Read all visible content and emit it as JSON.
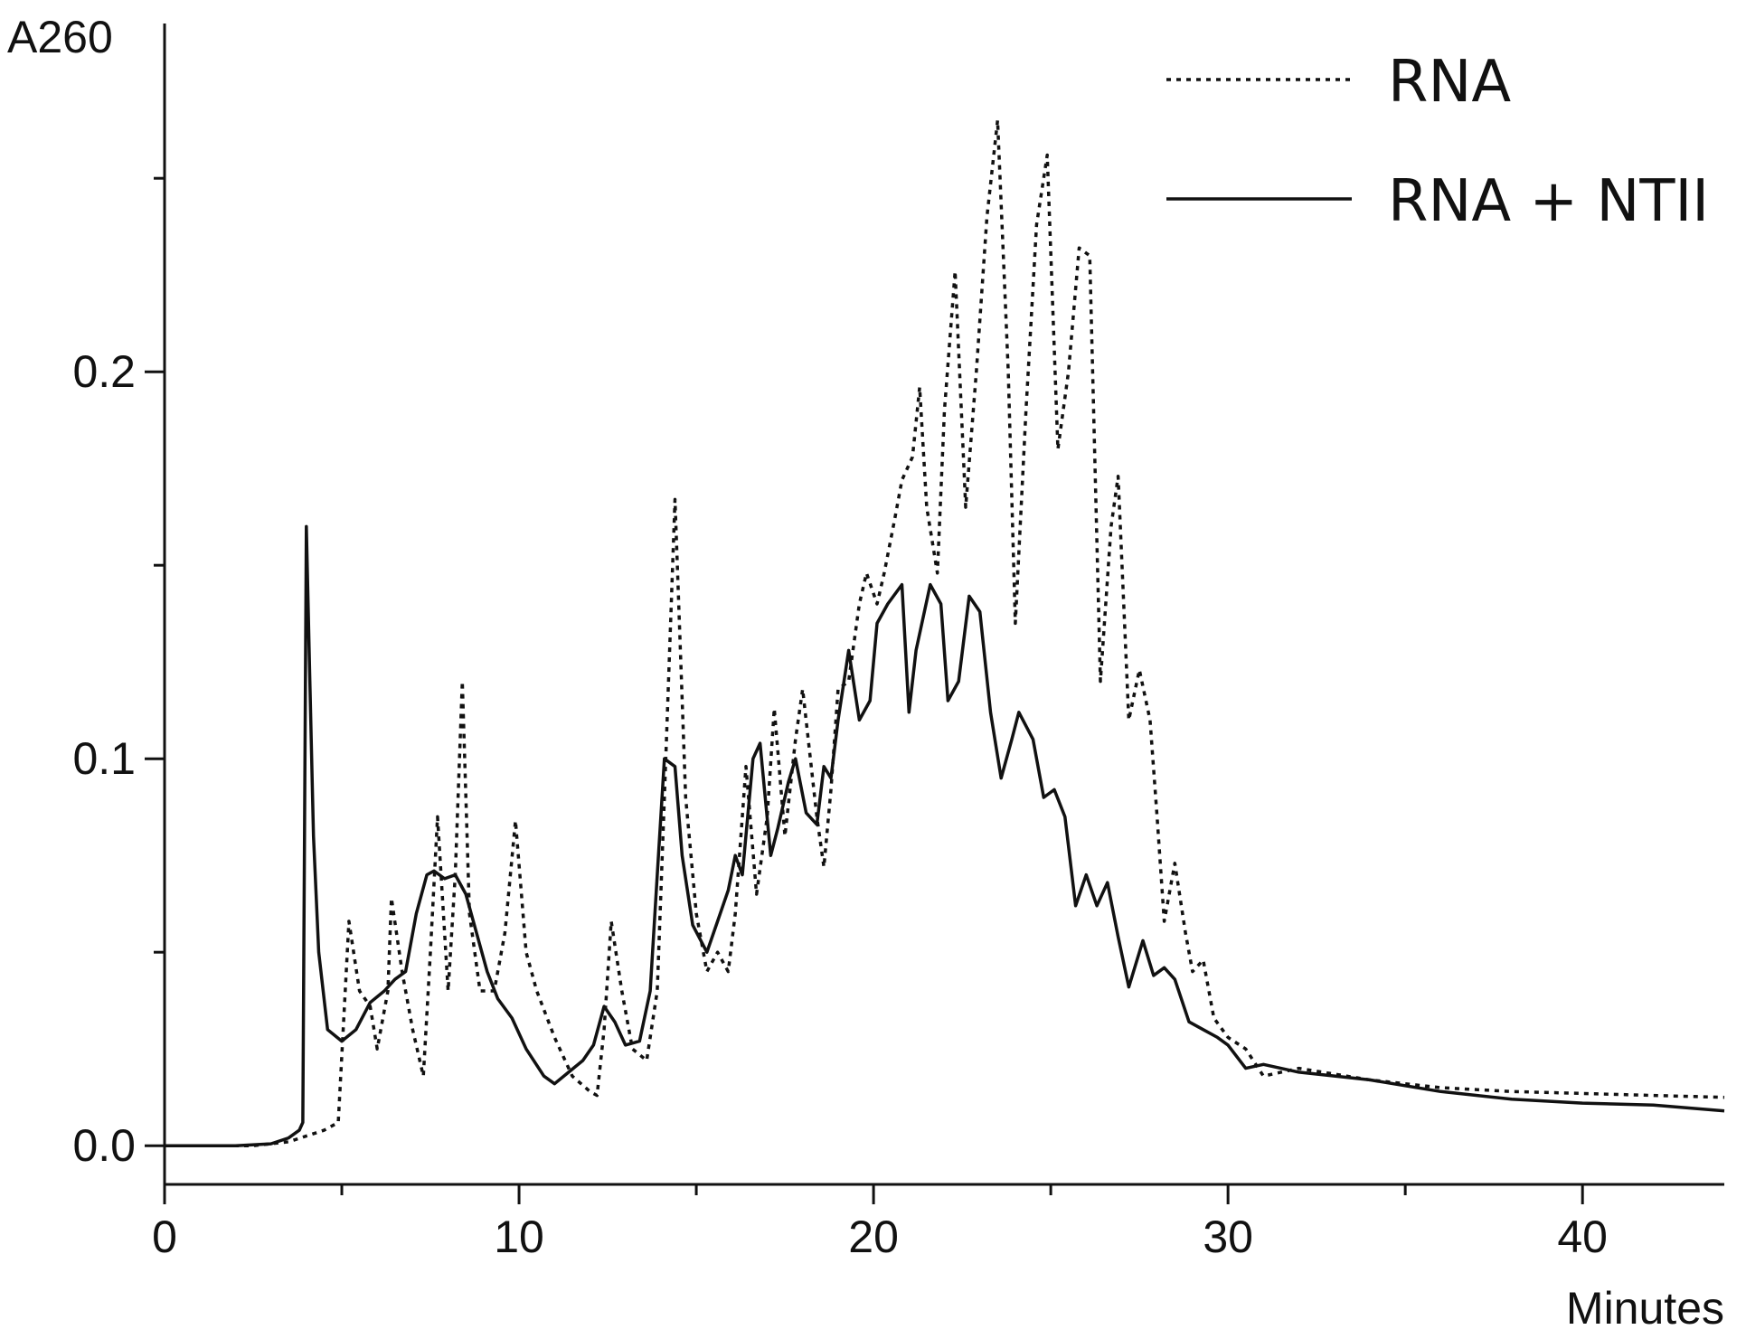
{
  "chart_data": {
    "type": "line",
    "title": "",
    "xlabel": "Minutes",
    "ylabel": "A260",
    "xlim": [
      0,
      44
    ],
    "ylim": [
      -0.01,
      0.29
    ],
    "x_ticks": [
      0,
      10,
      20,
      30,
      40
    ],
    "y_ticks": [
      0.0,
      0.1,
      0.2
    ],
    "x_tick_labels": [
      "0",
      "10",
      "20",
      "30",
      "40"
    ],
    "y_tick_labels": [
      "0.0",
      "0.1",
      "0.2"
    ],
    "grid": false,
    "legend_position": "top-right",
    "series": [
      {
        "name": "RNA",
        "line_style": "dotted",
        "color": "#111111",
        "points": [
          [
            0,
            0.0
          ],
          [
            2.5,
            0.0
          ],
          [
            3.5,
            0.001
          ],
          [
            4.5,
            0.004
          ],
          [
            4.9,
            0.006
          ],
          [
            5.2,
            0.058
          ],
          [
            5.5,
            0.04
          ],
          [
            5.8,
            0.036
          ],
          [
            6.0,
            0.025
          ],
          [
            6.3,
            0.04
          ],
          [
            6.4,
            0.064
          ],
          [
            6.7,
            0.045
          ],
          [
            7.0,
            0.03
          ],
          [
            7.3,
            0.018
          ],
          [
            7.5,
            0.05
          ],
          [
            7.7,
            0.085
          ],
          [
            8.0,
            0.04
          ],
          [
            8.2,
            0.07
          ],
          [
            8.4,
            0.12
          ],
          [
            8.6,
            0.06
          ],
          [
            8.9,
            0.04
          ],
          [
            9.3,
            0.04
          ],
          [
            9.6,
            0.055
          ],
          [
            9.9,
            0.084
          ],
          [
            10.2,
            0.05
          ],
          [
            10.5,
            0.04
          ],
          [
            11.0,
            0.028
          ],
          [
            11.5,
            0.018
          ],
          [
            12.0,
            0.014
          ],
          [
            12.2,
            0.013
          ],
          [
            12.4,
            0.03
          ],
          [
            12.6,
            0.058
          ],
          [
            12.9,
            0.04
          ],
          [
            13.2,
            0.025
          ],
          [
            13.6,
            0.022
          ],
          [
            13.9,
            0.04
          ],
          [
            14.1,
            0.09
          ],
          [
            14.4,
            0.167
          ],
          [
            14.7,
            0.09
          ],
          [
            15.0,
            0.06
          ],
          [
            15.3,
            0.045
          ],
          [
            15.6,
            0.05
          ],
          [
            15.9,
            0.045
          ],
          [
            16.1,
            0.06
          ],
          [
            16.4,
            0.098
          ],
          [
            16.7,
            0.065
          ],
          [
            17.0,
            0.085
          ],
          [
            17.2,
            0.113
          ],
          [
            17.5,
            0.08
          ],
          [
            17.8,
            0.105
          ],
          [
            18.0,
            0.118
          ],
          [
            18.4,
            0.085
          ],
          [
            18.6,
            0.072
          ],
          [
            18.8,
            0.092
          ],
          [
            19.0,
            0.118
          ],
          [
            19.3,
            0.12
          ],
          [
            19.6,
            0.14
          ],
          [
            19.8,
            0.148
          ],
          [
            20.1,
            0.14
          ],
          [
            20.3,
            0.148
          ],
          [
            20.6,
            0.162
          ],
          [
            20.8,
            0.172
          ],
          [
            21.1,
            0.178
          ],
          [
            21.3,
            0.196
          ],
          [
            21.5,
            0.165
          ],
          [
            21.8,
            0.148
          ],
          [
            22.0,
            0.19
          ],
          [
            22.3,
            0.226
          ],
          [
            22.6,
            0.165
          ],
          [
            22.9,
            0.2
          ],
          [
            23.2,
            0.24
          ],
          [
            23.5,
            0.265
          ],
          [
            23.8,
            0.2
          ],
          [
            24.0,
            0.135
          ],
          [
            24.3,
            0.19
          ],
          [
            24.6,
            0.238
          ],
          [
            24.9,
            0.256
          ],
          [
            25.2,
            0.18
          ],
          [
            25.5,
            0.2
          ],
          [
            25.8,
            0.232
          ],
          [
            26.1,
            0.23
          ],
          [
            26.4,
            0.12
          ],
          [
            26.7,
            0.16
          ],
          [
            26.9,
            0.173
          ],
          [
            27.2,
            0.11
          ],
          [
            27.5,
            0.123
          ],
          [
            27.8,
            0.11
          ],
          [
            28.0,
            0.085
          ],
          [
            28.2,
            0.058
          ],
          [
            28.5,
            0.073
          ],
          [
            28.8,
            0.055
          ],
          [
            29.0,
            0.045
          ],
          [
            29.3,
            0.048
          ],
          [
            29.6,
            0.033
          ],
          [
            30.0,
            0.028
          ],
          [
            30.5,
            0.025
          ],
          [
            31.0,
            0.018
          ],
          [
            32.0,
            0.02
          ],
          [
            34.0,
            0.017
          ],
          [
            36.0,
            0.015
          ],
          [
            38.0,
            0.014
          ],
          [
            40.0,
            0.0135
          ],
          [
            42.0,
            0.013
          ],
          [
            44.0,
            0.0125
          ]
        ]
      },
      {
        "name": "RNA + NTII",
        "line_style": "solid",
        "color": "#111111",
        "points": [
          [
            0,
            0.0
          ],
          [
            2.0,
            0.0
          ],
          [
            3.0,
            0.0005
          ],
          [
            3.5,
            0.002
          ],
          [
            3.8,
            0.004
          ],
          [
            3.9,
            0.006
          ],
          [
            4.0,
            0.16
          ],
          [
            4.1,
            0.12
          ],
          [
            4.2,
            0.08
          ],
          [
            4.35,
            0.05
          ],
          [
            4.6,
            0.03
          ],
          [
            5.0,
            0.027
          ],
          [
            5.4,
            0.03
          ],
          [
            5.8,
            0.037
          ],
          [
            6.2,
            0.04
          ],
          [
            6.5,
            0.043
          ],
          [
            6.8,
            0.045
          ],
          [
            7.1,
            0.06
          ],
          [
            7.4,
            0.07
          ],
          [
            7.6,
            0.071
          ],
          [
            7.9,
            0.069
          ],
          [
            8.2,
            0.07
          ],
          [
            8.5,
            0.065
          ],
          [
            8.8,
            0.055
          ],
          [
            9.1,
            0.045
          ],
          [
            9.4,
            0.038
          ],
          [
            9.8,
            0.033
          ],
          [
            10.2,
            0.025
          ],
          [
            10.7,
            0.018
          ],
          [
            11.0,
            0.016
          ],
          [
            11.4,
            0.019
          ],
          [
            11.8,
            0.022
          ],
          [
            12.1,
            0.026
          ],
          [
            12.4,
            0.036
          ],
          [
            12.7,
            0.032
          ],
          [
            13.0,
            0.026
          ],
          [
            13.4,
            0.027
          ],
          [
            13.7,
            0.04
          ],
          [
            13.9,
            0.07
          ],
          [
            14.1,
            0.1
          ],
          [
            14.4,
            0.098
          ],
          [
            14.6,
            0.075
          ],
          [
            14.9,
            0.057
          ],
          [
            15.3,
            0.05
          ],
          [
            15.6,
            0.058
          ],
          [
            15.9,
            0.066
          ],
          [
            16.1,
            0.075
          ],
          [
            16.3,
            0.07
          ],
          [
            16.6,
            0.1
          ],
          [
            16.8,
            0.104
          ],
          [
            17.1,
            0.075
          ],
          [
            17.3,
            0.082
          ],
          [
            17.6,
            0.094
          ],
          [
            17.8,
            0.1
          ],
          [
            18.1,
            0.086
          ],
          [
            18.4,
            0.083
          ],
          [
            18.6,
            0.098
          ],
          [
            18.8,
            0.095
          ],
          [
            19.0,
            0.11
          ],
          [
            19.3,
            0.128
          ],
          [
            19.6,
            0.11
          ],
          [
            19.9,
            0.115
          ],
          [
            20.1,
            0.135
          ],
          [
            20.4,
            0.14
          ],
          [
            20.8,
            0.145
          ],
          [
            21.0,
            0.112
          ],
          [
            21.2,
            0.128
          ],
          [
            21.6,
            0.145
          ],
          [
            21.9,
            0.14
          ],
          [
            22.1,
            0.115
          ],
          [
            22.4,
            0.12
          ],
          [
            22.7,
            0.142
          ],
          [
            23.0,
            0.138
          ],
          [
            23.3,
            0.112
          ],
          [
            23.6,
            0.095
          ],
          [
            23.9,
            0.105
          ],
          [
            24.1,
            0.112
          ],
          [
            24.5,
            0.105
          ],
          [
            24.8,
            0.09
          ],
          [
            25.1,
            0.092
          ],
          [
            25.4,
            0.085
          ],
          [
            25.7,
            0.062
          ],
          [
            26.0,
            0.07
          ],
          [
            26.3,
            0.062
          ],
          [
            26.6,
            0.068
          ],
          [
            26.9,
            0.054
          ],
          [
            27.2,
            0.041
          ],
          [
            27.6,
            0.053
          ],
          [
            27.9,
            0.044
          ],
          [
            28.2,
            0.046
          ],
          [
            28.5,
            0.043
          ],
          [
            28.9,
            0.032
          ],
          [
            29.3,
            0.03
          ],
          [
            29.7,
            0.028
          ],
          [
            30.0,
            0.026
          ],
          [
            30.5,
            0.02
          ],
          [
            31.0,
            0.021
          ],
          [
            32.0,
            0.019
          ],
          [
            34.0,
            0.017
          ],
          [
            36.0,
            0.014
          ],
          [
            38.0,
            0.012
          ],
          [
            40.0,
            0.011
          ],
          [
            42.0,
            0.0105
          ],
          [
            44.0,
            0.009
          ]
        ]
      }
    ]
  }
}
